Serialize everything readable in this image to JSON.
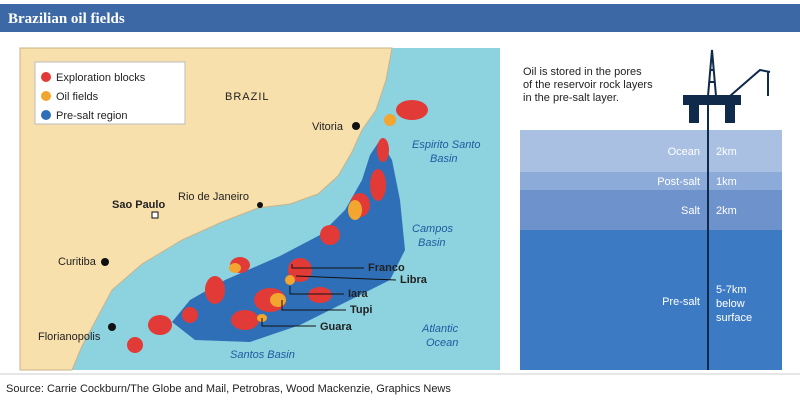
{
  "header": {
    "title": "Brazilian oil fields"
  },
  "map": {
    "legend": [
      "Exploration blocks",
      "Oil fields",
      "Pre-salt region"
    ],
    "places": [
      "BRAZIL",
      "Vitoria",
      "Sao Paulo",
      "Rio de Janeiro",
      "Curitiba",
      "Florianopolis"
    ],
    "basins": [
      [
        "Espirito Santo",
        "Basin"
      ],
      [
        "Campos",
        "Basin"
      ],
      [
        "Atlantic",
        "Ocean"
      ],
      [
        "Santos Basin"
      ]
    ],
    "fields": [
      "Franco",
      "Libra",
      "Iara",
      "Tupi",
      "Guara"
    ]
  },
  "diagram": {
    "note": [
      "Oil is stored in the pores",
      "of the reservoir rock layers",
      "in the pre-salt layer."
    ],
    "layers": [
      {
        "name": "Ocean",
        "depth": [
          "2km"
        ]
      },
      {
        "name": "Post-salt",
        "depth": [
          "1km"
        ]
      },
      {
        "name": "Salt",
        "depth": [
          "2km"
        ]
      },
      {
        "name": "Pre-salt",
        "depth": [
          "5-7km",
          "below",
          "surface"
        ]
      }
    ]
  },
  "source": "Source: Carrie Cockburn/The Globe and Mail, Petrobras, Wood Mackenzie, Graphics News"
}
